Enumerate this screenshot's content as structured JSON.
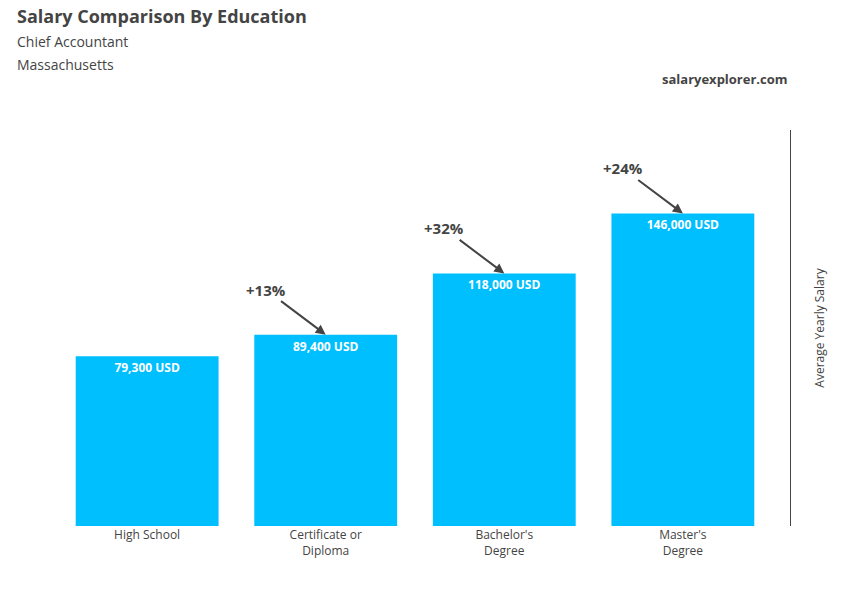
{
  "chart_data": {
    "type": "bar",
    "title": "Salary Comparison By Education",
    "subtitle": [
      "Chief Accountant",
      "Massachusetts"
    ],
    "ylabel": "Average Yearly Salary",
    "categories": [
      "High School",
      "Certificate or\nDiploma",
      "Bachelor's\nDegree",
      "Master's\nDegree"
    ],
    "values": [
      79300,
      89400,
      118000,
      146000
    ],
    "value_labels": [
      "79,300 USD",
      "89,400 USD",
      "118,000 USD",
      "146,000 USD"
    ],
    "data_labels": true,
    "color": "#00BFFF",
    "ylim": [
      0,
      185000
    ],
    "tick_labels": "x",
    "grid": false,
    "annotations": [
      "+13%",
      "+32%",
      "+24%"
    ],
    "brand": "salaryexplorer.com"
  }
}
